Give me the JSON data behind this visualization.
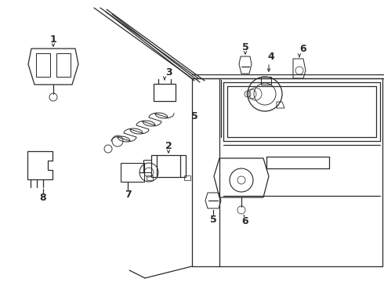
{
  "background_color": "#ffffff",
  "figure_width": 4.9,
  "figure_height": 3.6,
  "dpi": 100,
  "line_color": "#2a2a2a",
  "line_width": 0.9
}
